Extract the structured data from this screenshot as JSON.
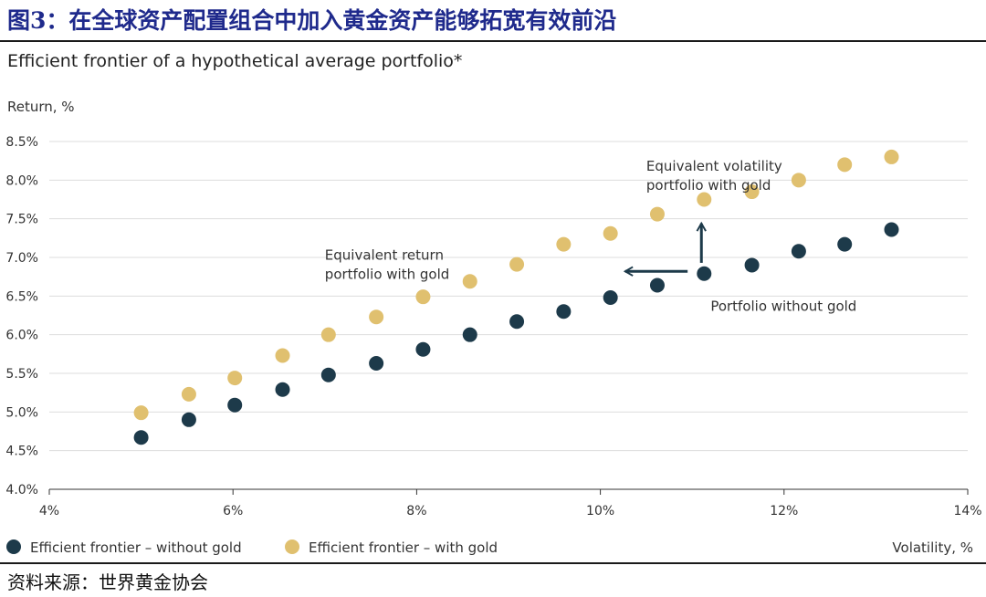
{
  "figure_title": "图3：在全球资产配置组合中加入黄金资产能够拓宽有效前沿",
  "source": "资料来源：世界黄金协会",
  "colors": {
    "title_blue": "#1f2a8c",
    "without_gold": "#1d3a4a",
    "with_gold": "#e0c06f",
    "axis": "#333333",
    "grid": "#dddddd"
  },
  "chart_data": {
    "type": "scatter",
    "title": "Efficient frontier of a hypothetical average portfolio*",
    "ylabel": "Return, %",
    "xlabel": "Volatility, %",
    "xlim": [
      4,
      14
    ],
    "ylim": [
      4.0,
      8.5
    ],
    "x_ticks": [
      "4%",
      "6%",
      "8%",
      "10%",
      "12%",
      "14%"
    ],
    "y_ticks": [
      "4.0%",
      "4.5%",
      "5.0%",
      "5.5%",
      "6.0%",
      "6.5%",
      "7.0%",
      "7.5%",
      "8.0%",
      "8.5%"
    ],
    "grid": "horizontal",
    "legend_position": "bottom-left",
    "series": [
      {
        "name": "Efficient frontier – without gold",
        "color": "#1d3a4a",
        "points": [
          [
            5.0,
            4.67
          ],
          [
            5.52,
            4.9
          ],
          [
            6.02,
            5.09
          ],
          [
            6.54,
            5.29
          ],
          [
            7.04,
            5.48
          ],
          [
            7.56,
            5.63
          ],
          [
            8.07,
            5.81
          ],
          [
            8.58,
            6.0
          ],
          [
            9.09,
            6.17
          ],
          [
            9.6,
            6.3
          ],
          [
            10.11,
            6.48
          ],
          [
            10.62,
            6.64
          ],
          [
            11.13,
            6.79
          ],
          [
            11.65,
            6.9
          ],
          [
            12.16,
            7.08
          ],
          [
            12.66,
            7.17
          ],
          [
            13.17,
            7.36
          ]
        ]
      },
      {
        "name": "Efficient frontier – with gold",
        "color": "#e0c06f",
        "points": [
          [
            5.0,
            4.99
          ],
          [
            5.52,
            5.23
          ],
          [
            6.02,
            5.44
          ],
          [
            6.54,
            5.73
          ],
          [
            7.04,
            6.0
          ],
          [
            7.56,
            6.23
          ],
          [
            8.07,
            6.49
          ],
          [
            8.58,
            6.69
          ],
          [
            9.09,
            6.91
          ],
          [
            9.6,
            7.17
          ],
          [
            10.11,
            7.31
          ],
          [
            10.62,
            7.56
          ],
          [
            11.13,
            7.75
          ],
          [
            11.65,
            7.85
          ],
          [
            12.16,
            8.0
          ],
          [
            12.66,
            8.2
          ],
          [
            13.17,
            8.3
          ]
        ]
      }
    ],
    "annotations": [
      {
        "text": [
          "Equivalent volatility",
          "portfolio with gold"
        ],
        "x": 10.5,
        "y": 8.12
      },
      {
        "text": [
          "Equivalent return",
          "portfolio with gold"
        ],
        "x": 7.0,
        "y": 6.97
      },
      {
        "text": [
          "Portfolio without gold"
        ],
        "x": 11.2,
        "y": 6.31
      }
    ],
    "arrows": [
      {
        "from": [
          11.1,
          6.93
        ],
        "to": [
          11.1,
          7.44
        ]
      },
      {
        "from": [
          10.95,
          6.82
        ],
        "to": [
          10.27,
          6.82
        ]
      }
    ]
  }
}
